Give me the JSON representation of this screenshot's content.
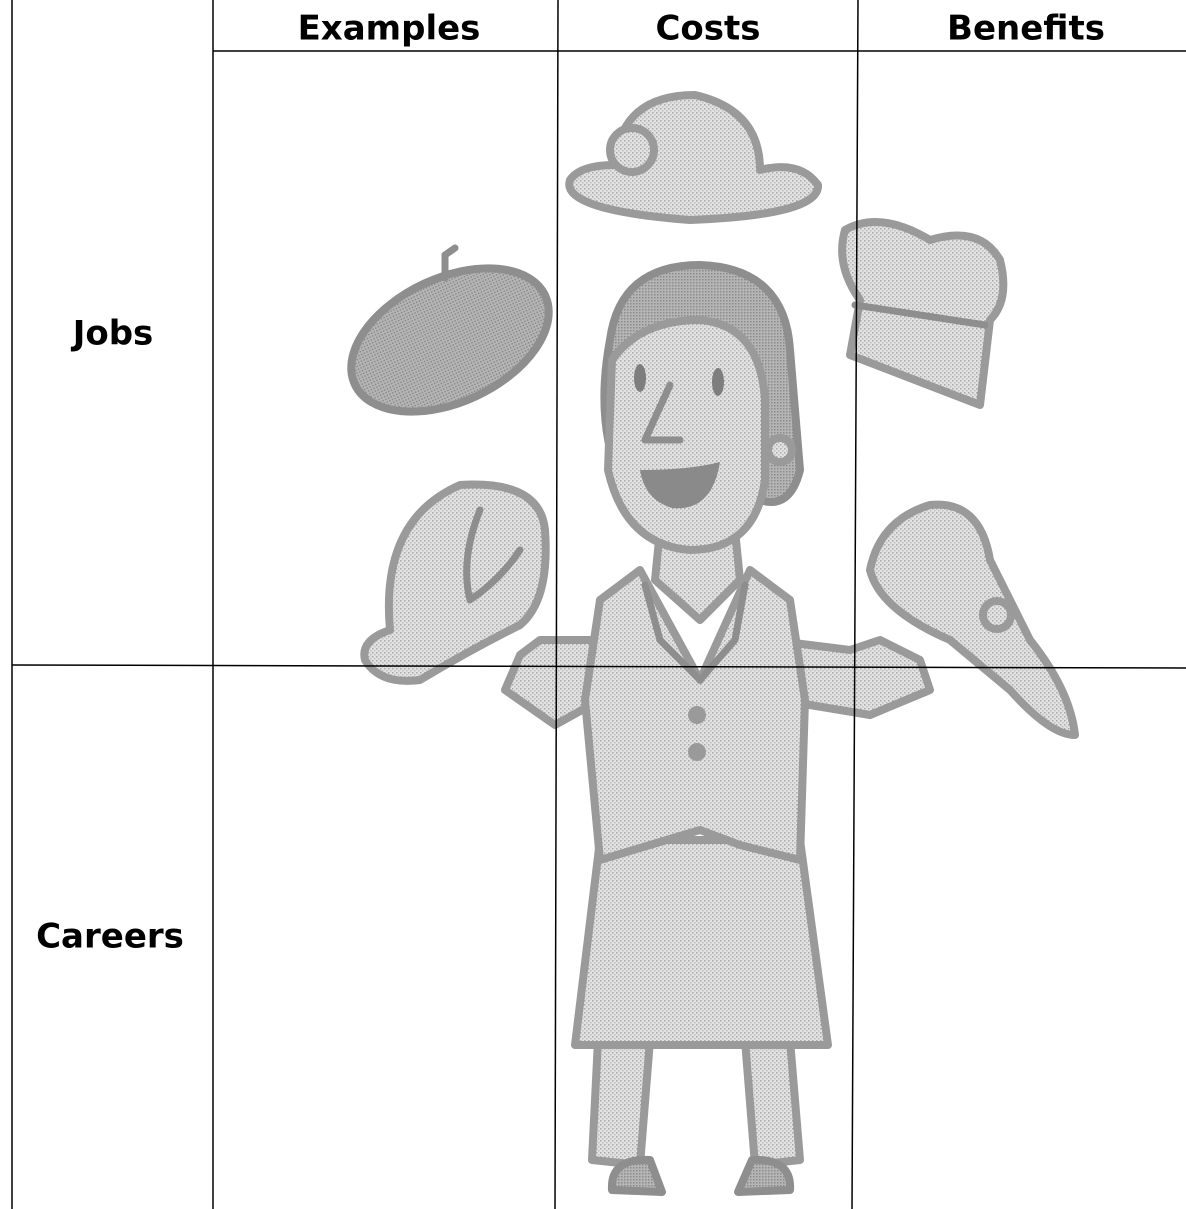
{
  "table": {
    "columns": [
      "Examples",
      "Costs",
      "Benefits"
    ],
    "rows": [
      {
        "label": "Jobs"
      },
      {
        "label": "Careers"
      }
    ]
  }
}
